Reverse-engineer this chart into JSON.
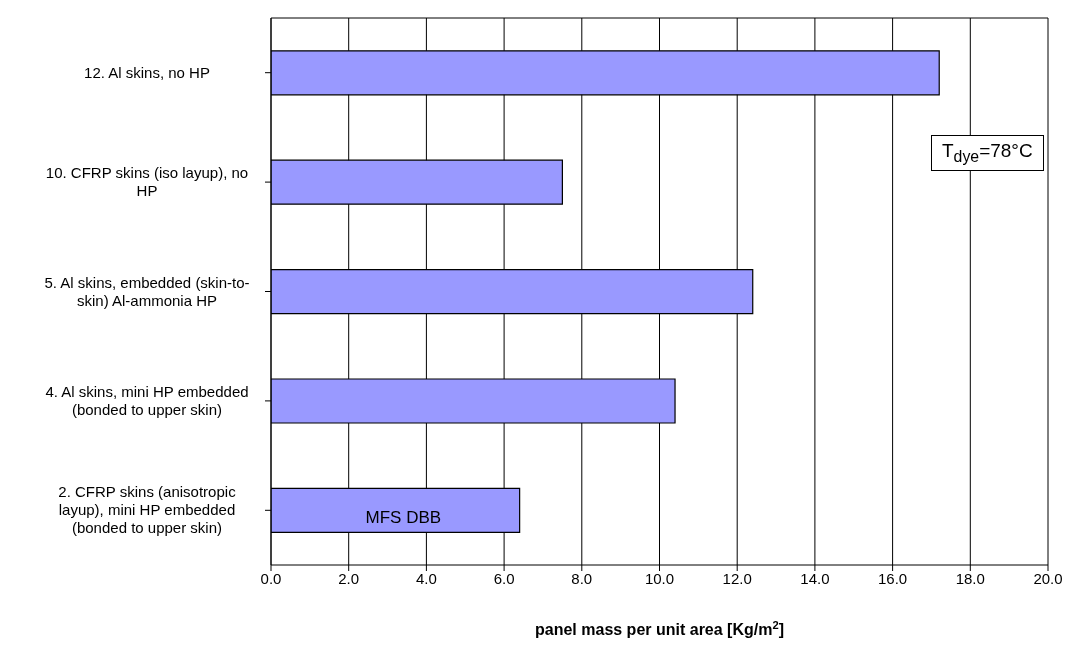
{
  "chart_data": {
    "type": "bar",
    "orientation": "horizontal",
    "categories": [
      "12. Al skins, no HP",
      "10. CFRP skins (iso layup), no HP",
      "5. Al skins, embedded (skin-to-skin)  Al-ammonia HP",
      "4. Al skins,  mini HP embedded (bonded to upper skin)",
      "2. CFRP skins (anisotropic layup), mini HP embedded (bonded to upper skin)"
    ],
    "values": [
      17.2,
      7.5,
      12.4,
      10.4,
      6.4
    ],
    "color": "#9999ff",
    "xlabel": "panel  mass per unit area [Kg/m$^{2}$]",
    "xlim": [
      0,
      20
    ],
    "xticks": [
      {
        "value": 0,
        "label": "0.0"
      },
      {
        "value": 2,
        "label": "2.0"
      },
      {
        "value": 4,
        "label": "4.0"
      },
      {
        "value": 6,
        "label": "6.0"
      },
      {
        "value": 8,
        "label": "8.0"
      },
      {
        "value": 10,
        "label": "10.0"
      },
      {
        "value": 12,
        "label": "12.0"
      },
      {
        "value": 14,
        "label": "14.0"
      },
      {
        "value": 16,
        "label": "16.0"
      },
      {
        "value": 18,
        "label": "18.0"
      },
      {
        "value": 20,
        "label": "20.0"
      }
    ],
    "grid": "x",
    "annotations": [
      "T$_{dye}$=78°C",
      "MFS DBB"
    ]
  }
}
